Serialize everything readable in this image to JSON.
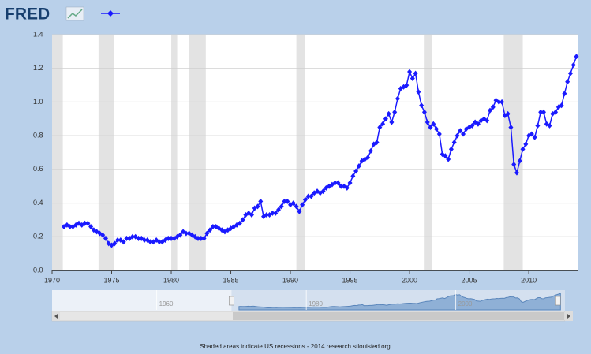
{
  "logo": "FRED",
  "footer": "Shaded areas indicate US recessions - 2014 research.stlouisfed.org",
  "chart_data": {
    "type": "line",
    "xlim": [
      1970,
      2014.1
    ],
    "xticks": [
      1970,
      1975,
      1980,
      1985,
      1990,
      1995,
      2000,
      2005,
      2010
    ],
    "ylim": [
      0,
      1.4
    ],
    "yticks": [
      {
        "value": 0,
        "label": "0.0"
      },
      0.2,
      0.4,
      0.6,
      0.8,
      {
        "value": 1,
        "label": "1.0"
      },
      1.2,
      1.4
    ],
    "grid": true,
    "recessions": [
      [
        1969.9,
        1970.9
      ],
      [
        1973.9,
        1975.2
      ],
      [
        1980.0,
        1980.5
      ],
      [
        1981.5,
        1982.9
      ],
      [
        1990.5,
        1991.2
      ],
      [
        2001.2,
        2001.9
      ],
      [
        2007.9,
        2009.5
      ]
    ],
    "series": [
      {
        "color": "#1a1aff",
        "x": [
          1971,
          1971.25,
          1971.5,
          1971.75,
          1972,
          1972.25,
          1972.5,
          1972.75,
          1973,
          1973.25,
          1973.5,
          1973.75,
          1974,
          1974.25,
          1974.5,
          1974.75,
          1975,
          1975.25,
          1975.5,
          1975.75,
          1976,
          1976.25,
          1976.5,
          1976.75,
          1977,
          1977.25,
          1977.5,
          1977.75,
          1978,
          1978.25,
          1978.5,
          1978.75,
          1979,
          1979.25,
          1979.5,
          1979.75,
          1980,
          1980.25,
          1980.5,
          1980.75,
          1981,
          1981.25,
          1981.5,
          1981.75,
          1982,
          1982.25,
          1982.5,
          1982.75,
          1983,
          1983.25,
          1983.5,
          1983.75,
          1984,
          1984.25,
          1984.5,
          1984.75,
          1985,
          1985.25,
          1985.5,
          1985.75,
          1986,
          1986.25,
          1986.5,
          1986.75,
          1987,
          1987.25,
          1987.5,
          1987.75,
          1988,
          1988.25,
          1988.5,
          1988.75,
          1989,
          1989.25,
          1989.5,
          1989.75,
          1990,
          1990.25,
          1990.5,
          1990.75,
          1991,
          1991.25,
          1991.5,
          1991.75,
          1992,
          1992.25,
          1992.5,
          1992.75,
          1993,
          1993.25,
          1993.5,
          1993.75,
          1994,
          1994.25,
          1994.5,
          1994.75,
          1995,
          1995.25,
          1995.5,
          1995.75,
          1996,
          1996.25,
          1996.5,
          1996.75,
          1997,
          1997.25,
          1997.5,
          1997.75,
          1998,
          1998.25,
          1998.5,
          1998.75,
          1999,
          1999.25,
          1999.5,
          1999.75,
          2000,
          2000.25,
          2000.5,
          2000.75,
          2001,
          2001.25,
          2001.5,
          2001.75,
          2002,
          2002.25,
          2002.5,
          2002.75,
          2003,
          2003.25,
          2003.5,
          2003.75,
          2004,
          2004.25,
          2004.5,
          2004.75,
          2005,
          2005.25,
          2005.5,
          2005.75,
          2006,
          2006.25,
          2006.5,
          2006.75,
          2007,
          2007.25,
          2007.5,
          2007.75,
          2008,
          2008.25,
          2008.5,
          2008.75,
          2009,
          2009.25,
          2009.5,
          2009.75,
          2010,
          2010.25,
          2010.5,
          2010.75,
          2011,
          2011.25,
          2011.5,
          2011.75,
          2012,
          2012.25,
          2012.5,
          2012.75,
          2013,
          2013.25,
          2013.5,
          2013.75,
          2014
        ],
        "values": [
          0.26,
          0.27,
          0.26,
          0.26,
          0.27,
          0.28,
          0.27,
          0.28,
          0.28,
          0.26,
          0.24,
          0.23,
          0.22,
          0.21,
          0.19,
          0.16,
          0.15,
          0.16,
          0.18,
          0.18,
          0.17,
          0.19,
          0.19,
          0.2,
          0.2,
          0.19,
          0.19,
          0.18,
          0.18,
          0.17,
          0.17,
          0.18,
          0.17,
          0.17,
          0.18,
          0.19,
          0.19,
          0.19,
          0.2,
          0.21,
          0.23,
          0.22,
          0.22,
          0.21,
          0.2,
          0.19,
          0.19,
          0.19,
          0.22,
          0.24,
          0.26,
          0.26,
          0.25,
          0.24,
          0.23,
          0.24,
          0.25,
          0.26,
          0.27,
          0.28,
          0.3,
          0.33,
          0.34,
          0.33,
          0.37,
          0.38,
          0.41,
          0.32,
          0.33,
          0.33,
          0.34,
          0.34,
          0.36,
          0.38,
          0.41,
          0.41,
          0.39,
          0.4,
          0.38,
          0.35,
          0.39,
          0.42,
          0.44,
          0.44,
          0.46,
          0.47,
          0.46,
          0.47,
          0.49,
          0.5,
          0.51,
          0.52,
          0.52,
          0.5,
          0.5,
          0.49,
          0.52,
          0.56,
          0.59,
          0.62,
          0.65,
          0.66,
          0.67,
          0.71,
          0.75,
          0.76,
          0.85,
          0.87,
          0.9,
          0.93,
          0.88,
          0.94,
          1.02,
          1.08,
          1.09,
          1.1,
          1.18,
          1.14,
          1.17,
          1.06,
          0.98,
          0.94,
          0.88,
          0.85,
          0.87,
          0.84,
          0.81,
          0.69,
          0.68,
          0.66,
          0.72,
          0.76,
          0.8,
          0.83,
          0.81,
          0.84,
          0.85,
          0.86,
          0.88,
          0.87,
          0.89,
          0.9,
          0.89,
          0.95,
          0.97,
          1.01,
          1.0,
          1.0,
          0.92,
          0.93,
          0.85,
          0.63,
          0.58,
          0.65,
          0.72,
          0.75,
          0.8,
          0.81,
          0.79,
          0.86,
          0.94,
          0.94,
          0.87,
          0.86,
          0.93,
          0.94,
          0.97,
          0.98,
          1.05,
          1.12,
          1.17,
          1.22,
          1.27
        ]
      }
    ],
    "navigator": {
      "xlim": [
        1946,
        2014.6
      ],
      "xticks": [
        1960,
        1980,
        2000
      ]
    }
  }
}
